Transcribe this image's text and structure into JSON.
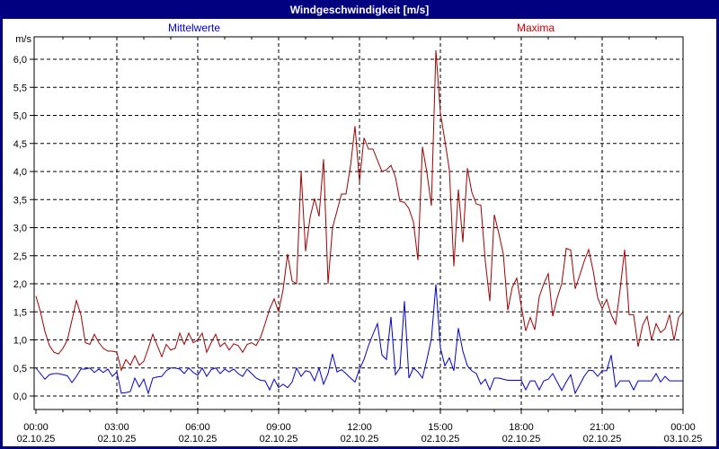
{
  "window": {
    "title": "Windgeschwindigkeit [m/s]"
  },
  "legend": {
    "mean_label": "Mittelwerte",
    "max_label": "Maxima"
  },
  "colors": {
    "frame_border": "#000080",
    "titlebar_bg": "#000080",
    "titlebar_text": "#ffffff",
    "mean_line": "#0000cc",
    "max_line": "#a00000",
    "mean_legend_text": "#0000e0",
    "max_legend_text": "#cc0000",
    "grid": "#000000",
    "plot_bg": "#ffffff"
  },
  "y_axis": {
    "unit_label": "m/s",
    "tick_labels": [
      "0,0",
      "0,5",
      "1,0",
      "1,5",
      "2,0",
      "2,5",
      "3,0",
      "3,5",
      "4,0",
      "4,5",
      "5,0",
      "5,5",
      "6,0"
    ]
  },
  "x_axis": {
    "ticks": [
      {
        "hour": 0,
        "time": "00:00",
        "date": "02.10.25"
      },
      {
        "hour": 3,
        "time": "03:00",
        "date": "02.10.25"
      },
      {
        "hour": 6,
        "time": "06:00",
        "date": "02.10.25"
      },
      {
        "hour": 9,
        "time": "09:00",
        "date": "02.10.25"
      },
      {
        "hour": 12,
        "time": "12:00",
        "date": "02.10.25"
      },
      {
        "hour": 15,
        "time": "15:00",
        "date": "02.10.25"
      },
      {
        "hour": 18,
        "time": "18:00",
        "date": "02.10.25"
      },
      {
        "hour": 21,
        "time": "21:00",
        "date": "02.10.25"
      },
      {
        "hour": 24,
        "time": "00:00",
        "date": "03.10.25"
      }
    ]
  },
  "chart_data": {
    "type": "line",
    "title": "Windgeschwindigkeit [m/s]",
    "ylabel": "m/s",
    "ylim": [
      0,
      6
    ],
    "y_step": 0.5,
    "x_range_hours": [
      0,
      24
    ],
    "x_step_minutes": 10,
    "grid": "dashed",
    "legend_position": "top",
    "series": [
      {
        "name": "Mittelwerte",
        "color": "#0000cc",
        "values": [
          0.5,
          0.4,
          0.3,
          0.38,
          0.4,
          0.4,
          0.38,
          0.36,
          0.24,
          0.35,
          0.48,
          0.48,
          0.5,
          0.42,
          0.48,
          0.42,
          0.48,
          0.35,
          0.43,
          0.05,
          0.06,
          0.08,
          0.32,
          0.16,
          0.3,
          0.05,
          0.32,
          0.34,
          0.35,
          0.45,
          0.5,
          0.5,
          0.48,
          0.4,
          0.5,
          0.42,
          0.37,
          0.5,
          0.35,
          0.47,
          0.5,
          0.4,
          0.48,
          0.43,
          0.48,
          0.4,
          0.35,
          0.48,
          0.4,
          0.32,
          0.28,
          0.27,
          0.11,
          0.3,
          0.15,
          0.21,
          0.15,
          0.25,
          0.5,
          0.35,
          0.45,
          0.43,
          0.27,
          0.5,
          0.21,
          0.4,
          0.75,
          0.43,
          0.47,
          0.4,
          0.32,
          0.25,
          0.48,
          0.65,
          0.9,
          1.1,
          1.29,
          0.73,
          0.65,
          1.41,
          0.38,
          0.5,
          1.69,
          0.32,
          0.5,
          0.43,
          0.32,
          0.65,
          1.02,
          1.99,
          0.86,
          0.54,
          0.68,
          0.45,
          1.21,
          0.8,
          0.54,
          0.45,
          0.4,
          0.21,
          0.3,
          0.11,
          0.32,
          0.32,
          0.3,
          0.28,
          0.28,
          0.28,
          0.28,
          0.11,
          0.27,
          0.27,
          0.11,
          0.27,
          0.3,
          0.4,
          0.25,
          0.1,
          0.25,
          0.38,
          0.05,
          0.2,
          0.35,
          0.46,
          0.45,
          0.35,
          0.45,
          0.45,
          0.73,
          0.16,
          0.27,
          0.27,
          0.27,
          0.11,
          0.27,
          0.27,
          0.27,
          0.27,
          0.4,
          0.25,
          0.35,
          0.27,
          0.27,
          0.27,
          0.27
        ]
      },
      {
        "name": "Maxima",
        "color": "#a00000",
        "values": [
          1.78,
          1.5,
          1.15,
          0.9,
          0.78,
          0.75,
          0.85,
          1.0,
          1.35,
          1.7,
          1.45,
          0.95,
          0.92,
          1.1,
          0.95,
          0.85,
          0.8,
          0.8,
          0.78,
          0.46,
          0.65,
          0.55,
          0.72,
          0.55,
          0.62,
          0.85,
          1.1,
          0.9,
          0.7,
          0.92,
          0.82,
          0.85,
          1.12,
          0.92,
          1.12,
          0.95,
          1.0,
          1.12,
          0.78,
          0.95,
          1.1,
          0.88,
          0.95,
          0.82,
          0.93,
          0.9,
          0.78,
          0.92,
          0.95,
          0.9,
          1.05,
          1.29,
          1.55,
          1.73,
          1.5,
          1.9,
          2.53,
          2.05,
          2.0,
          4.0,
          2.58,
          3.18,
          3.52,
          3.2,
          4.22,
          2.0,
          3.0,
          3.3,
          3.6,
          3.6,
          4.1,
          4.81,
          3.82,
          4.6,
          4.4,
          4.4,
          4.2,
          4.0,
          4.03,
          4.11,
          3.9,
          3.47,
          3.45,
          3.34,
          3.1,
          2.42,
          4.44,
          3.98,
          3.39,
          6.16,
          5.05,
          4.55,
          4.03,
          2.31,
          3.68,
          2.74,
          4.06,
          3.63,
          3.42,
          3.4,
          2.4,
          1.69,
          3.23,
          2.9,
          2.53,
          1.53,
          1.94,
          2.1,
          1.6,
          1.16,
          1.4,
          1.18,
          1.77,
          2.0,
          2.18,
          1.42,
          1.75,
          2.0,
          2.63,
          2.6,
          1.91,
          2.15,
          2.4,
          2.61,
          2.23,
          1.75,
          1.56,
          1.72,
          1.45,
          1.28,
          1.9,
          2.61,
          1.45,
          1.45,
          0.88,
          1.26,
          1.42,
          1.0,
          1.29,
          1.13,
          1.2,
          1.45,
          0.99,
          1.4,
          1.5
        ]
      }
    ]
  }
}
